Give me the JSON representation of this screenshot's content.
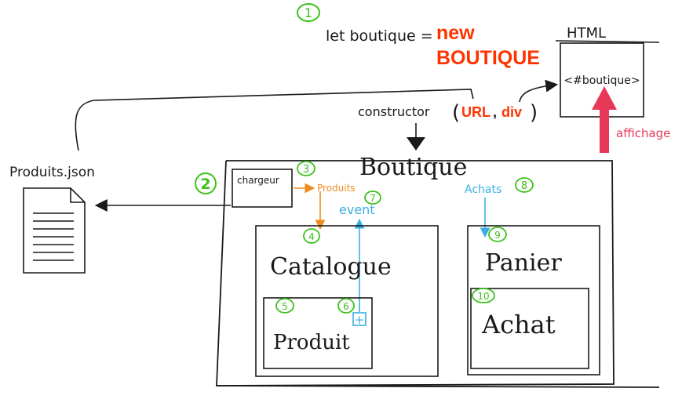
{
  "step1": {
    "number": "1",
    "code_prefix": "let boutique =",
    "keyword_new": "new",
    "class_name": "BOUTIQUE"
  },
  "html_box": {
    "title": "HTML",
    "selector": "<#boutique>",
    "display_label": "affichage"
  },
  "constructor": {
    "name": "constructor",
    "arg1": "URL",
    "comma": ",",
    "arg2": "div",
    "open_paren": "(",
    "close_paren": ")"
  },
  "json_file": {
    "label": "Produits.json"
  },
  "boutique": {
    "title": "Boutique",
    "step2": "2",
    "chargeur": {
      "label": "chargeur",
      "number": "3"
    },
    "produits_flow": "Produits",
    "event_flow": {
      "label": "event",
      "number": "7"
    },
    "achats_flow": {
      "label": "Achats",
      "number": "8"
    },
    "catalogue": {
      "label": "Catalogue",
      "number": "4"
    },
    "produit": {
      "label": "Produit",
      "number": "5",
      "plus_number": "6",
      "plus_symbol": "+"
    },
    "panier": {
      "label": "Panier",
      "number": "9"
    },
    "achat": {
      "label": "Achat",
      "number": "10"
    }
  },
  "colors": {
    "ink": "#1a1a1a",
    "green": "#3cc21a",
    "red": "#ff3300",
    "orange": "#f08c1e",
    "blue": "#3aaee0",
    "pink": "#e8385a"
  }
}
